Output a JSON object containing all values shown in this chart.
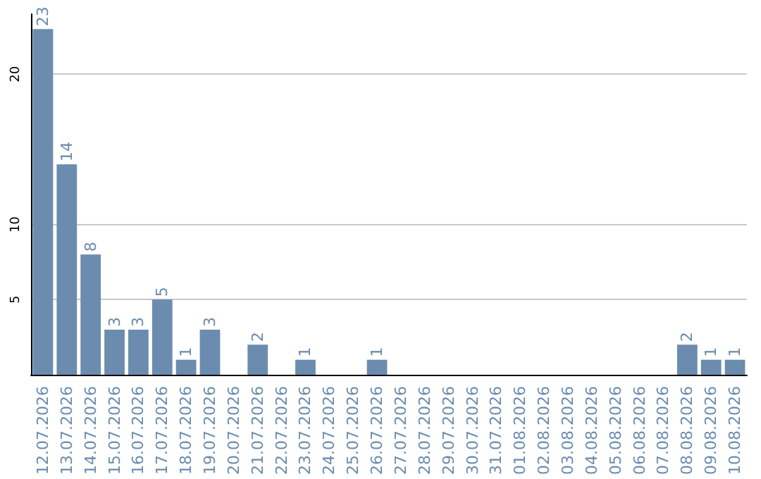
{
  "chart_data": {
    "type": "bar",
    "categories": [
      "12.07.2026",
      "13.07.2026",
      "14.07.2026",
      "15.07.2026",
      "16.07.2026",
      "17.07.2026",
      "18.07.2026",
      "19.07.2026",
      "20.07.2026",
      "21.07.2026",
      "22.07.2026",
      "23.07.2026",
      "24.07.2026",
      "25.07.2026",
      "26.07.2026",
      "27.07.2026",
      "28.07.2026",
      "29.07.2026",
      "30.07.2026",
      "31.07.2026",
      "01.08.2026",
      "02.08.2026",
      "03.08.2026",
      "04.08.2026",
      "05.08.2026",
      "06.08.2026",
      "07.08.2026",
      "08.08.2026",
      "09.08.2026",
      "10.08.2026"
    ],
    "values": [
      23,
      14,
      8,
      3,
      3,
      5,
      1,
      3,
      0,
      2,
      0,
      1,
      0,
      0,
      1,
      0,
      0,
      0,
      0,
      0,
      0,
      0,
      0,
      0,
      0,
      0,
      0,
      2,
      1,
      1
    ],
    "value_labels": [
      "23",
      "14",
      "8",
      "3",
      "3",
      "5",
      "1",
      "3",
      null,
      "2",
      null,
      "1",
      null,
      null,
      "1",
      null,
      null,
      null,
      null,
      null,
      null,
      null,
      null,
      null,
      null,
      null,
      null,
      "2",
      "1",
      "1"
    ],
    "color": "#6b8cae",
    "ylim": [
      0,
      24
    ],
    "yticks": [
      5,
      10,
      20
    ],
    "grid": "y"
  }
}
